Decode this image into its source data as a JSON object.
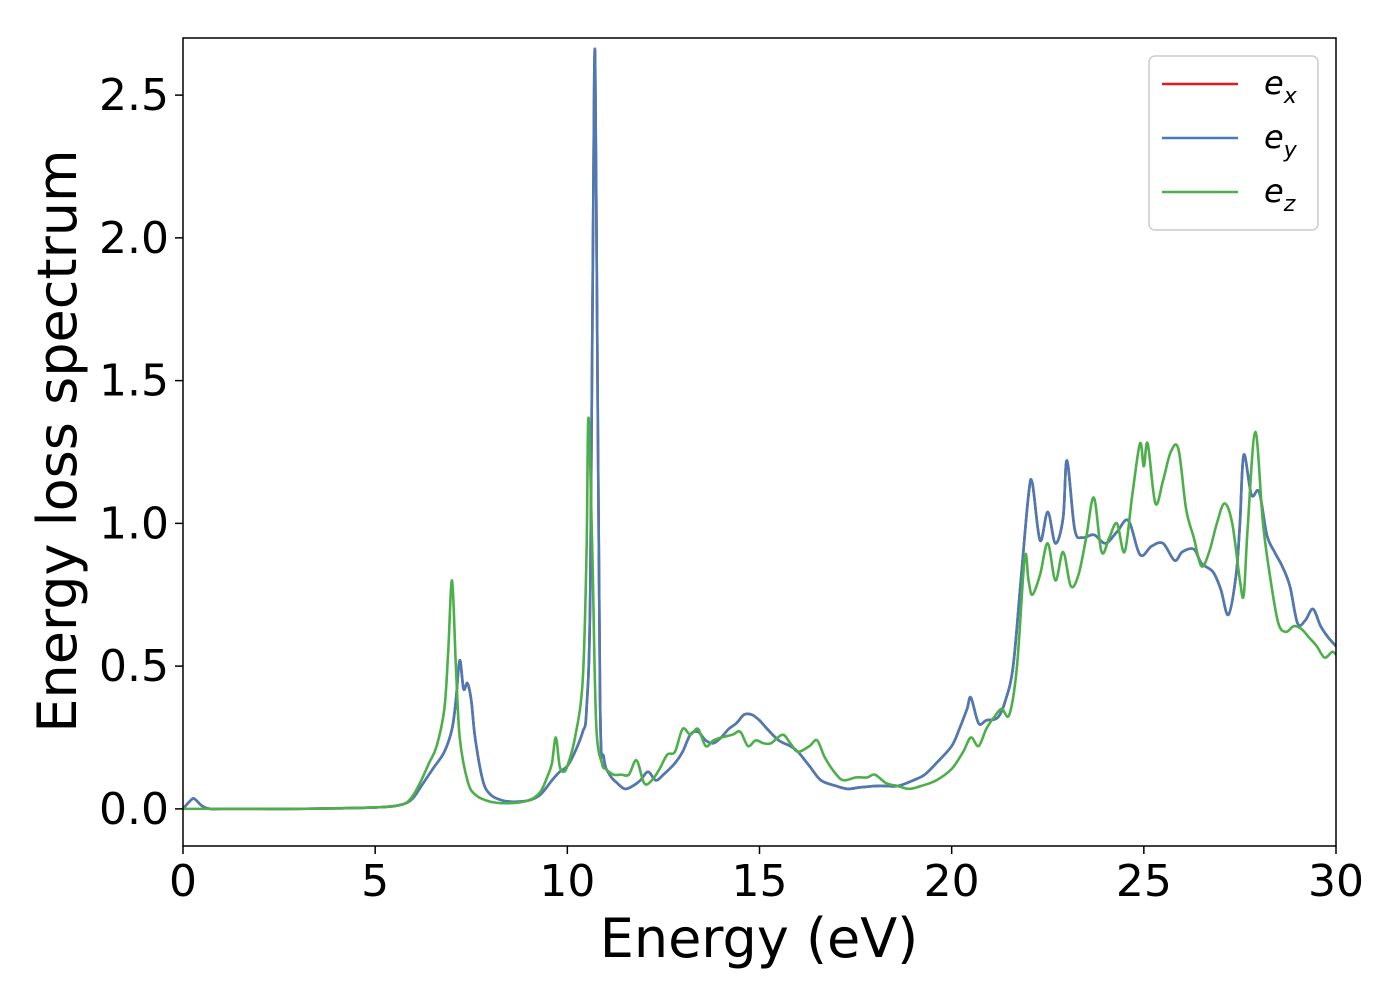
{
  "chart_data": {
    "type": "line",
    "title": "",
    "xlabel": "Energy (eV)",
    "ylabel": "Energy loss spectrum",
    "xlim": [
      0,
      30
    ],
    "ylim": [
      -0.13,
      2.7
    ],
    "xticks": [
      0,
      5,
      10,
      15,
      20,
      25,
      30
    ],
    "xtick_labels": [
      "0",
      "5",
      "10",
      "15",
      "20",
      "25",
      "30"
    ],
    "yticks": [
      0.0,
      0.5,
      1.0,
      1.5,
      2.0,
      2.5
    ],
    "ytick_labels": [
      "0.0",
      "0.5",
      "1.0",
      "1.5",
      "2.0",
      "2.5"
    ],
    "grid": false,
    "legend_position": "top-right",
    "series": [
      {
        "name": "e_x",
        "legend_base": "e",
        "legend_sub": "x",
        "color": "#e41a1c",
        "x": [
          0,
          0.2,
          0.3,
          0.5,
          0.7,
          1,
          2,
          3,
          4,
          5,
          5.5,
          5.8,
          6,
          6.2,
          6.5,
          6.8,
          7.0,
          7.1,
          7.2,
          7.3,
          7.4,
          7.5,
          7.6,
          7.8,
          8.0,
          8.3,
          8.6,
          9.0,
          9.3,
          9.6,
          9.8,
          10.0,
          10.2,
          10.4,
          10.5,
          10.6,
          10.7,
          10.75,
          10.85,
          10.95,
          11.1,
          11.3,
          11.5,
          11.7,
          11.9,
          12.1,
          12.3,
          12.5,
          12.8,
          13.0,
          13.2,
          13.4,
          13.6,
          13.8,
          14.0,
          14.2,
          14.4,
          14.6,
          14.8,
          15.0,
          15.2,
          15.5,
          15.8,
          16.0,
          16.3,
          16.6,
          17.0,
          17.3,
          17.6,
          18.0,
          18.3,
          18.6,
          19.0,
          19.3,
          19.6,
          20.0,
          20.2,
          20.4,
          20.5,
          20.7,
          20.9,
          21.2,
          21.4,
          21.6,
          21.8,
          22.0,
          22.1,
          22.3,
          22.5,
          22.7,
          22.9,
          23.0,
          23.2,
          23.4,
          23.7,
          24.0,
          24.3,
          24.6,
          24.9,
          25.2,
          25.5,
          25.8,
          26.0,
          26.3,
          26.5,
          26.8,
          27.0,
          27.2,
          27.4,
          27.5,
          27.6,
          27.8,
          28.0,
          28.2,
          28.4,
          28.6,
          28.8,
          29.0,
          29.2,
          29.4,
          29.6,
          29.8,
          30.0
        ],
        "y": [
          0.0,
          0.03,
          0.035,
          0.01,
          0.0,
          0.0,
          0.0,
          0.0,
          0.002,
          0.005,
          0.01,
          0.02,
          0.04,
          0.08,
          0.14,
          0.2,
          0.28,
          0.38,
          0.52,
          0.42,
          0.44,
          0.38,
          0.25,
          0.1,
          0.05,
          0.03,
          0.025,
          0.03,
          0.05,
          0.1,
          0.13,
          0.15,
          0.2,
          0.27,
          0.35,
          0.8,
          2.57,
          2.2,
          0.4,
          0.18,
          0.12,
          0.09,
          0.07,
          0.08,
          0.1,
          0.13,
          0.1,
          0.12,
          0.16,
          0.2,
          0.26,
          0.27,
          0.24,
          0.23,
          0.25,
          0.28,
          0.3,
          0.33,
          0.33,
          0.31,
          0.28,
          0.24,
          0.22,
          0.2,
          0.15,
          0.1,
          0.08,
          0.07,
          0.075,
          0.08,
          0.08,
          0.08,
          0.1,
          0.12,
          0.16,
          0.22,
          0.28,
          0.35,
          0.39,
          0.3,
          0.31,
          0.32,
          0.38,
          0.5,
          0.8,
          1.1,
          1.14,
          0.94,
          1.04,
          0.93,
          1.02,
          1.22,
          0.98,
          0.95,
          0.96,
          0.93,
          0.97,
          1.01,
          0.89,
          0.92,
          0.93,
          0.87,
          0.9,
          0.91,
          0.86,
          0.83,
          0.77,
          0.68,
          0.82,
          1.0,
          1.24,
          1.1,
          1.11,
          0.96,
          0.9,
          0.85,
          0.78,
          0.65,
          0.66,
          0.7,
          0.64,
          0.6,
          0.57
        ]
      },
      {
        "name": "e_y",
        "legend_base": "e",
        "legend_sub": "y",
        "color": "#4a7bb4",
        "x": [
          0,
          0.2,
          0.3,
          0.5,
          0.7,
          1,
          2,
          3,
          4,
          5,
          5.5,
          5.8,
          6,
          6.2,
          6.5,
          6.8,
          7.0,
          7.1,
          7.2,
          7.3,
          7.4,
          7.5,
          7.6,
          7.8,
          8.0,
          8.3,
          8.6,
          9.0,
          9.3,
          9.6,
          9.8,
          10.0,
          10.2,
          10.4,
          10.5,
          10.6,
          10.7,
          10.75,
          10.85,
          10.95,
          11.1,
          11.3,
          11.5,
          11.7,
          11.9,
          12.1,
          12.3,
          12.5,
          12.8,
          13.0,
          13.2,
          13.4,
          13.6,
          13.8,
          14.0,
          14.2,
          14.4,
          14.6,
          14.8,
          15.0,
          15.2,
          15.5,
          15.8,
          16.0,
          16.3,
          16.6,
          17.0,
          17.3,
          17.6,
          18.0,
          18.3,
          18.6,
          19.0,
          19.3,
          19.6,
          20.0,
          20.2,
          20.4,
          20.5,
          20.7,
          20.9,
          21.2,
          21.4,
          21.6,
          21.8,
          22.0,
          22.1,
          22.3,
          22.5,
          22.7,
          22.9,
          23.0,
          23.2,
          23.4,
          23.7,
          24.0,
          24.3,
          24.6,
          24.9,
          25.2,
          25.5,
          25.8,
          26.0,
          26.3,
          26.5,
          26.8,
          27.0,
          27.2,
          27.4,
          27.5,
          27.6,
          27.8,
          28.0,
          28.2,
          28.4,
          28.6,
          28.8,
          29.0,
          29.2,
          29.4,
          29.6,
          29.8,
          30.0
        ],
        "y": [
          0.0,
          0.03,
          0.035,
          0.01,
          0.0,
          0.0,
          0.0,
          0.0,
          0.002,
          0.005,
          0.01,
          0.02,
          0.04,
          0.08,
          0.14,
          0.2,
          0.28,
          0.38,
          0.52,
          0.42,
          0.44,
          0.38,
          0.25,
          0.1,
          0.05,
          0.03,
          0.025,
          0.03,
          0.05,
          0.1,
          0.13,
          0.15,
          0.2,
          0.27,
          0.35,
          0.8,
          2.57,
          2.2,
          0.4,
          0.18,
          0.12,
          0.09,
          0.07,
          0.08,
          0.1,
          0.13,
          0.1,
          0.12,
          0.16,
          0.2,
          0.26,
          0.27,
          0.24,
          0.23,
          0.25,
          0.28,
          0.3,
          0.33,
          0.33,
          0.31,
          0.28,
          0.24,
          0.22,
          0.2,
          0.15,
          0.1,
          0.08,
          0.07,
          0.075,
          0.08,
          0.08,
          0.08,
          0.1,
          0.12,
          0.16,
          0.22,
          0.28,
          0.35,
          0.39,
          0.3,
          0.31,
          0.32,
          0.38,
          0.5,
          0.8,
          1.1,
          1.14,
          0.94,
          1.04,
          0.93,
          1.02,
          1.22,
          0.98,
          0.95,
          0.96,
          0.93,
          0.97,
          1.01,
          0.89,
          0.92,
          0.93,
          0.87,
          0.9,
          0.91,
          0.86,
          0.83,
          0.77,
          0.68,
          0.82,
          1.0,
          1.24,
          1.1,
          1.11,
          0.96,
          0.9,
          0.85,
          0.78,
          0.65,
          0.66,
          0.7,
          0.64,
          0.6,
          0.57
        ]
      },
      {
        "name": "e_z",
        "legend_base": "e",
        "legend_sub": "z",
        "color": "#4daf4a",
        "x": [
          0,
          1,
          2,
          3,
          4,
          5,
          5.5,
          5.8,
          6.0,
          6.2,
          6.4,
          6.6,
          6.8,
          6.9,
          7.0,
          7.1,
          7.2,
          7.4,
          7.6,
          8.0,
          8.5,
          9.0,
          9.3,
          9.5,
          9.6,
          9.7,
          9.8,
          9.9,
          10.0,
          10.2,
          10.4,
          10.5,
          10.55,
          10.65,
          10.75,
          10.9,
          11.0,
          11.2,
          11.4,
          11.6,
          11.8,
          12.0,
          12.2,
          12.4,
          12.6,
          12.8,
          13.0,
          13.2,
          13.4,
          13.6,
          13.8,
          14.0,
          14.3,
          14.5,
          14.7,
          14.9,
          15.1,
          15.3,
          15.6,
          15.8,
          16.0,
          16.3,
          16.5,
          16.7,
          17.0,
          17.2,
          17.5,
          17.8,
          18.0,
          18.3,
          18.6,
          18.9,
          19.2,
          19.6,
          20.0,
          20.3,
          20.5,
          20.7,
          20.9,
          21.1,
          21.3,
          21.5,
          21.7,
          21.9,
          22.0,
          22.1,
          22.3,
          22.5,
          22.7,
          22.9,
          23.1,
          23.3,
          23.5,
          23.7,
          23.9,
          24.1,
          24.3,
          24.5,
          24.7,
          24.9,
          25.0,
          25.1,
          25.3,
          25.5,
          25.7,
          25.9,
          26.1,
          26.3,
          26.5,
          26.7,
          26.9,
          27.1,
          27.3,
          27.5,
          27.6,
          27.7,
          27.9,
          28.1,
          28.3,
          28.5,
          28.7,
          28.9,
          29.1,
          29.3,
          29.5,
          29.7,
          29.9,
          30.0
        ],
        "y": [
          0.0,
          0.0,
          0.0,
          0.0,
          0.002,
          0.005,
          0.01,
          0.02,
          0.05,
          0.1,
          0.16,
          0.22,
          0.35,
          0.55,
          0.8,
          0.5,
          0.25,
          0.1,
          0.05,
          0.025,
          0.02,
          0.03,
          0.06,
          0.12,
          0.16,
          0.25,
          0.15,
          0.13,
          0.15,
          0.25,
          0.45,
          0.9,
          1.37,
          0.9,
          0.3,
          0.16,
          0.14,
          0.12,
          0.12,
          0.12,
          0.17,
          0.09,
          0.1,
          0.14,
          0.19,
          0.2,
          0.28,
          0.26,
          0.28,
          0.22,
          0.24,
          0.25,
          0.26,
          0.27,
          0.22,
          0.24,
          0.23,
          0.23,
          0.26,
          0.23,
          0.2,
          0.22,
          0.24,
          0.18,
          0.12,
          0.1,
          0.11,
          0.11,
          0.12,
          0.09,
          0.08,
          0.07,
          0.08,
          0.1,
          0.14,
          0.2,
          0.25,
          0.22,
          0.28,
          0.32,
          0.35,
          0.33,
          0.5,
          0.88,
          0.8,
          0.75,
          0.82,
          0.93,
          0.8,
          0.9,
          0.78,
          0.82,
          0.95,
          1.09,
          0.9,
          0.95,
          1.0,
          0.9,
          1.1,
          1.28,
          1.2,
          1.28,
          1.07,
          1.15,
          1.25,
          1.26,
          1.05,
          0.95,
          0.85,
          0.9,
          1.0,
          1.07,
          1.0,
          0.8,
          0.75,
          0.98,
          1.32,
          1.0,
          0.8,
          0.65,
          0.62,
          0.64,
          0.63,
          0.6,
          0.57,
          0.53,
          0.55,
          0.54
        ]
      }
    ]
  }
}
